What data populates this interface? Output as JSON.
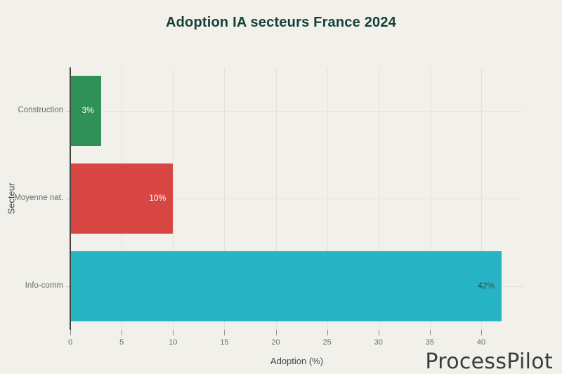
{
  "page": {
    "background": "#f1f0ea"
  },
  "watermark": {
    "text": "ProcessPilot",
    "color": "#3d3d3b"
  },
  "chart_data": {
    "type": "bar",
    "orientation": "horizontal",
    "title": "Adoption IA secteurs France 2024",
    "xlabel": "Adoption (%)",
    "ylabel": "Secteur",
    "categories": [
      "Construction",
      "Moyenne nat.",
      "Info-comm"
    ],
    "values": [
      3,
      10,
      42
    ],
    "value_labels": [
      "3%",
      "10%",
      "42%"
    ],
    "bar_colors": [
      "#2f9157",
      "#d84643",
      "#27b5c6"
    ],
    "value_label_colors": [
      "#ffffff",
      "#ffffff",
      "#2e4a48"
    ],
    "value_label_position": "inside-end",
    "xticks": [
      0,
      5,
      10,
      15,
      20,
      25,
      30,
      35,
      40
    ],
    "xlim": [
      0,
      44.1
    ],
    "grid": true,
    "legend": false,
    "colors": {
      "title": "#14403b",
      "axis_line": "#45453f",
      "gridline": "#e3e2da",
      "tick_text": "#6d6d68",
      "axis_title_text": "#3e4a48",
      "category_tick": "#c2c1b9",
      "x_tick_mark": "#8f8f89"
    }
  }
}
